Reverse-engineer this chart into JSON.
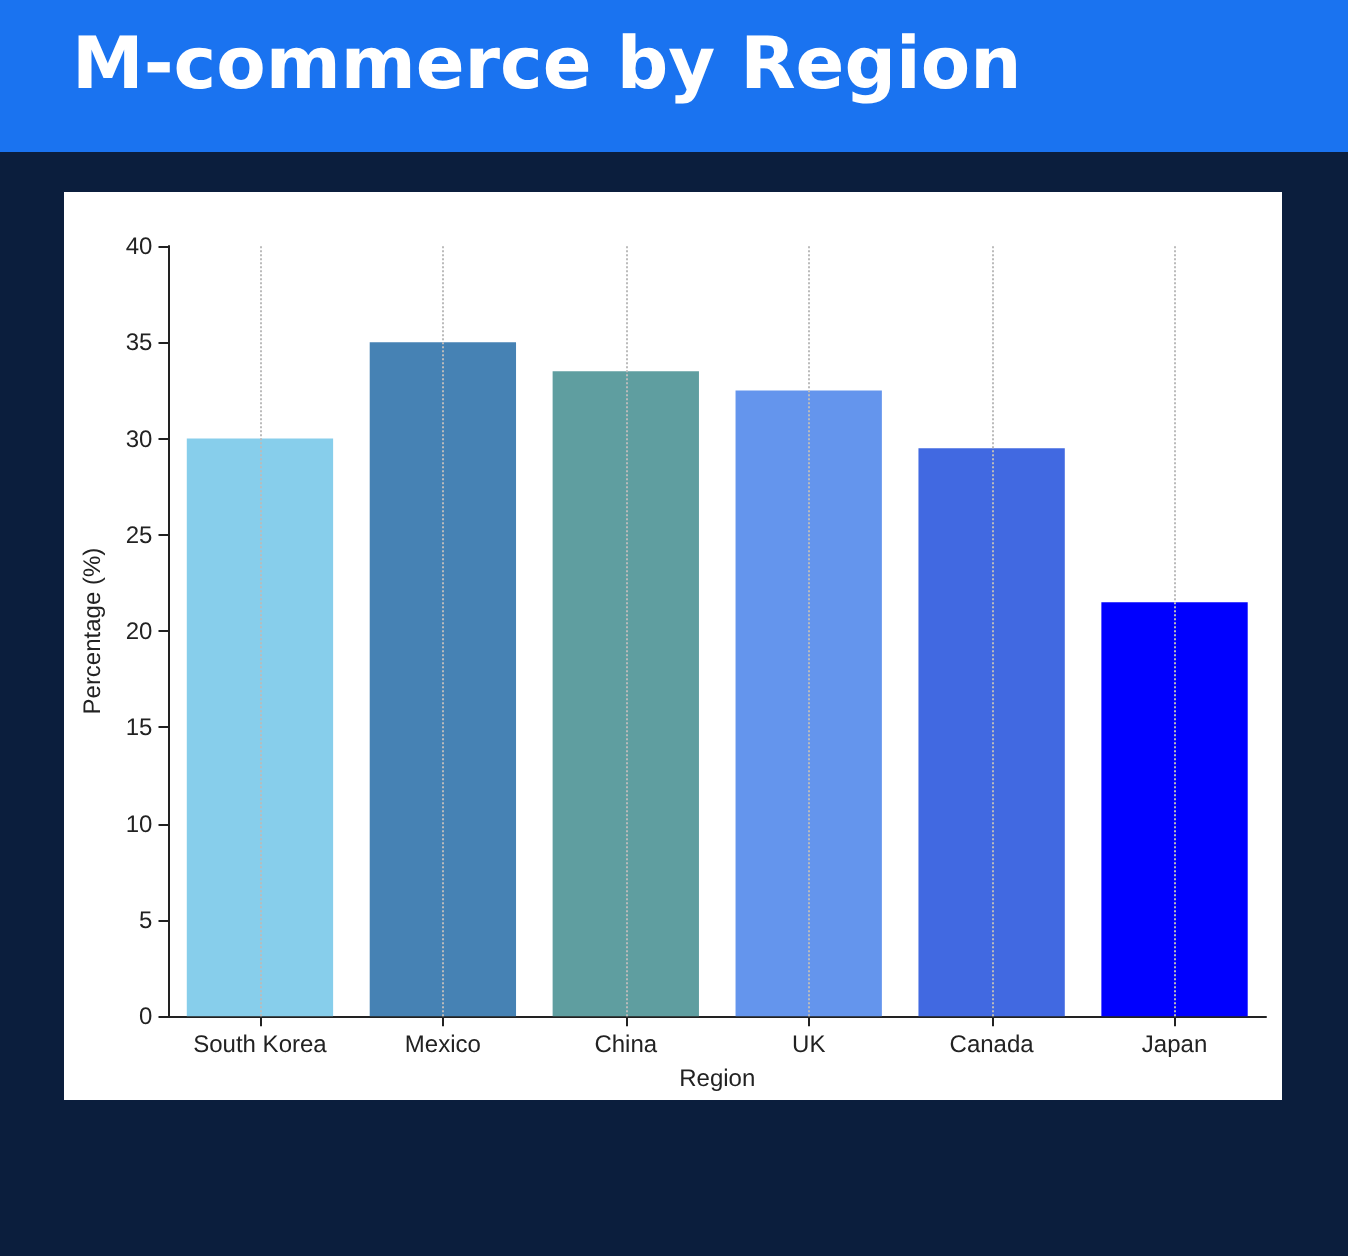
{
  "chart_data": {
    "type": "bar",
    "title": "M-commerce by Region",
    "xlabel": "Region",
    "ylabel": "Percentage (%)",
    "categories": [
      "South Korea",
      "Mexico",
      "China",
      "UK",
      "Canada",
      "Japan"
    ],
    "values": [
      30,
      35,
      33.5,
      32.5,
      29.5,
      21.5
    ],
    "colors": [
      "#87ceeb",
      "#4682b4",
      "#5f9ea0",
      "#6495ed",
      "#4169e1",
      "#0000ff"
    ],
    "ylim": [
      0,
      40
    ],
    "yticks": [
      0,
      5,
      10,
      15,
      20,
      25,
      30,
      35,
      40
    ],
    "grid": "x"
  }
}
